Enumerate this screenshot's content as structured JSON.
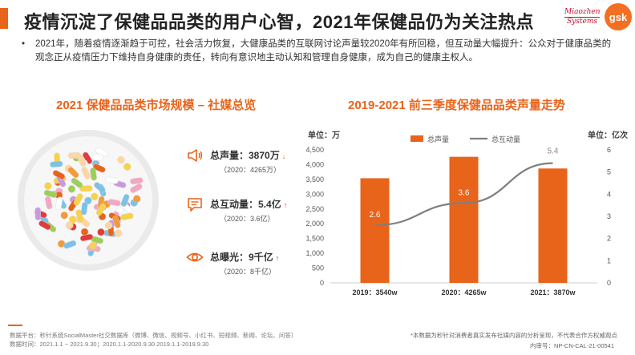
{
  "header": {
    "title": "疫情沉淀了保健品品类的用户心智，2021年保健品仍为关注热点",
    "logo_left_line1": "Miaozhen",
    "logo_left_line2": "Systems",
    "logo_right": "gsk"
  },
  "intro": {
    "bullet": "•",
    "text": "2021年，随着疫情逐渐趋于可控，社会活力恢复，大健康品类的互联网讨论声量较2020年有所回稳，但互动量大幅提升：公众对于健康品类的观念正从疫情压力下维持自身健康的责任，转向有意识地主动认知和管理自身健康，成为自己的健康主权人。"
  },
  "left_section": {
    "title": "2021 保健品品类市场规模 – 社媒总览",
    "metrics": [
      {
        "label": "总声量：3870万",
        "trend": "down",
        "arrow": "↓",
        "sub": "（2020：4265万）",
        "icon": "megaphone-icon"
      },
      {
        "label": "总互动量：5.4亿",
        "trend": "up",
        "arrow": "↑",
        "sub": "（2020：3.6亿）",
        "icon": "comment-icon"
      },
      {
        "label": "总曝光：9千亿",
        "trend": "up",
        "arrow": "↑",
        "sub": "（2020：8千亿）",
        "icon": "eye-icon"
      }
    ]
  },
  "right_section": {
    "title": "2019-2021 前三季度保健品品类声量走势",
    "left_unit": "单位：万",
    "right_unit": "单位：亿次"
  },
  "chart_data": {
    "type": "bar",
    "title": "2019-2021 前三季度保健品品类声量走势",
    "categories": [
      "2019：3540w",
      "2020：4265w",
      "2021：3870w"
    ],
    "series": [
      {
        "name": "总声量",
        "type": "bar",
        "axis": "left",
        "values": [
          3540,
          4265,
          3870
        ],
        "color": "#e8641b"
      },
      {
        "name": "总互动量",
        "type": "line",
        "axis": "right",
        "values": [
          2.6,
          3.6,
          5.4
        ],
        "data_labels": [
          "2.6",
          "3.6",
          "5.4"
        ],
        "color": "#7f7f7f"
      }
    ],
    "left_axis": {
      "label": "单位：万",
      "min": 0,
      "max": 4500,
      "step": 500,
      "ticks": [
        "0",
        "500",
        "1,000",
        "1,500",
        "2,000",
        "2,500",
        "3,000",
        "3,500",
        "4,000",
        "4,500"
      ]
    },
    "right_axis": {
      "label": "单位：亿次",
      "min": 0,
      "max": 6,
      "step": 1,
      "ticks": [
        "0",
        "1",
        "2",
        "3",
        "4",
        "5",
        "6"
      ]
    },
    "legend": "top-center",
    "grid": false
  },
  "footer": {
    "source_platform": "数据平台：秒针系统SocialMaster社交数据库（微博、微信、视频号、小红书、短视频、新闻、论坛、问答）",
    "source_time": "数据时间：2021.1.1 ~ 2021.9.30；2020.1.1-2020.9.30 2019.1.1-2019.9.30",
    "note": "*本数据为秒针对消费者真实发布社媒内容的分析呈现，不代表合作方权威观点",
    "review_code": "内审号：NP-CN-CAL-21-00541"
  },
  "colors": {
    "accent": "#e8641b",
    "line": "#7f7f7f",
    "up": "#e02020",
    "down": "#e8641b",
    "text": "#333333"
  }
}
